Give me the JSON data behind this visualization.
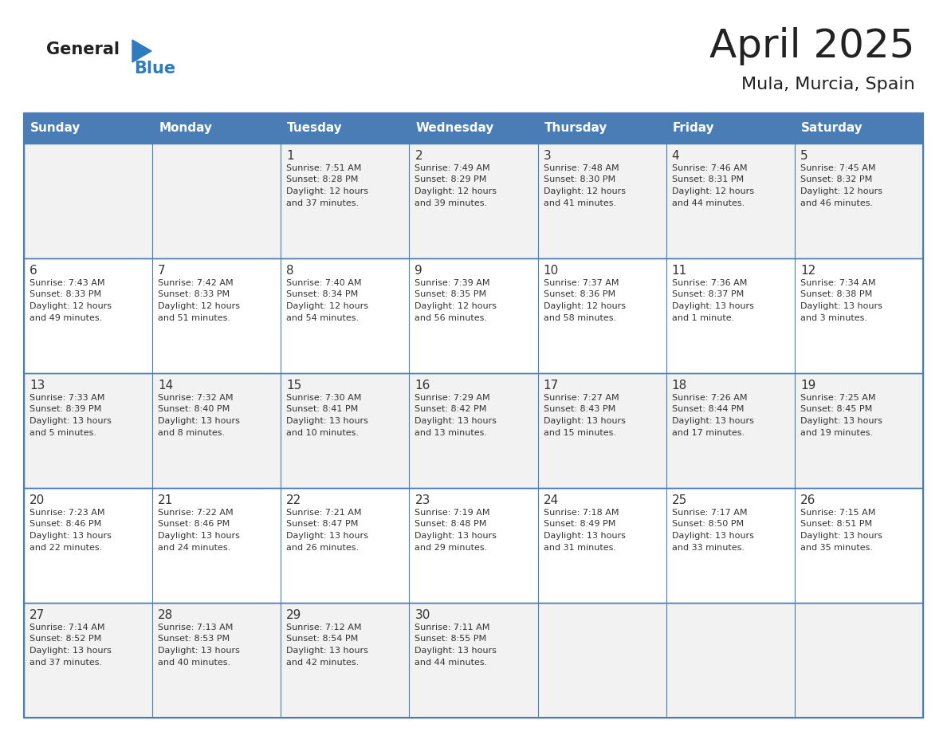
{
  "title": "April 2025",
  "subtitle": "Mula, Murcia, Spain",
  "days_of_week": [
    "Sunday",
    "Monday",
    "Tuesday",
    "Wednesday",
    "Thursday",
    "Friday",
    "Saturday"
  ],
  "header_bg": "#4A7DB5",
  "header_text": "#FFFFFF",
  "row_bg_odd": "#F2F2F2",
  "row_bg_even": "#FFFFFF",
  "border_color": "#4A7DB5",
  "text_color": "#333333",
  "logo_general_color": "#222222",
  "logo_blue_color": "#2E7BBF",
  "logo_triangle_color": "#2E7BBF",
  "title_fontsize": 36,
  "subtitle_fontsize": 16,
  "header_fontsize": 11,
  "day_num_fontsize": 11,
  "cell_text_fontsize": 8,
  "calendar_data": [
    [
      {
        "day": "",
        "lines": []
      },
      {
        "day": "",
        "lines": []
      },
      {
        "day": "1",
        "lines": [
          "Sunrise: 7:51 AM",
          "Sunset: 8:28 PM",
          "Daylight: 12 hours",
          "and 37 minutes."
        ]
      },
      {
        "day": "2",
        "lines": [
          "Sunrise: 7:49 AM",
          "Sunset: 8:29 PM",
          "Daylight: 12 hours",
          "and 39 minutes."
        ]
      },
      {
        "day": "3",
        "lines": [
          "Sunrise: 7:48 AM",
          "Sunset: 8:30 PM",
          "Daylight: 12 hours",
          "and 41 minutes."
        ]
      },
      {
        "day": "4",
        "lines": [
          "Sunrise: 7:46 AM",
          "Sunset: 8:31 PM",
          "Daylight: 12 hours",
          "and 44 minutes."
        ]
      },
      {
        "day": "5",
        "lines": [
          "Sunrise: 7:45 AM",
          "Sunset: 8:32 PM",
          "Daylight: 12 hours",
          "and 46 minutes."
        ]
      }
    ],
    [
      {
        "day": "6",
        "lines": [
          "Sunrise: 7:43 AM",
          "Sunset: 8:33 PM",
          "Daylight: 12 hours",
          "and 49 minutes."
        ]
      },
      {
        "day": "7",
        "lines": [
          "Sunrise: 7:42 AM",
          "Sunset: 8:33 PM",
          "Daylight: 12 hours",
          "and 51 minutes."
        ]
      },
      {
        "day": "8",
        "lines": [
          "Sunrise: 7:40 AM",
          "Sunset: 8:34 PM",
          "Daylight: 12 hours",
          "and 54 minutes."
        ]
      },
      {
        "day": "9",
        "lines": [
          "Sunrise: 7:39 AM",
          "Sunset: 8:35 PM",
          "Daylight: 12 hours",
          "and 56 minutes."
        ]
      },
      {
        "day": "10",
        "lines": [
          "Sunrise: 7:37 AM",
          "Sunset: 8:36 PM",
          "Daylight: 12 hours",
          "and 58 minutes."
        ]
      },
      {
        "day": "11",
        "lines": [
          "Sunrise: 7:36 AM",
          "Sunset: 8:37 PM",
          "Daylight: 13 hours",
          "and 1 minute."
        ]
      },
      {
        "day": "12",
        "lines": [
          "Sunrise: 7:34 AM",
          "Sunset: 8:38 PM",
          "Daylight: 13 hours",
          "and 3 minutes."
        ]
      }
    ],
    [
      {
        "day": "13",
        "lines": [
          "Sunrise: 7:33 AM",
          "Sunset: 8:39 PM",
          "Daylight: 13 hours",
          "and 5 minutes."
        ]
      },
      {
        "day": "14",
        "lines": [
          "Sunrise: 7:32 AM",
          "Sunset: 8:40 PM",
          "Daylight: 13 hours",
          "and 8 minutes."
        ]
      },
      {
        "day": "15",
        "lines": [
          "Sunrise: 7:30 AM",
          "Sunset: 8:41 PM",
          "Daylight: 13 hours",
          "and 10 minutes."
        ]
      },
      {
        "day": "16",
        "lines": [
          "Sunrise: 7:29 AM",
          "Sunset: 8:42 PM",
          "Daylight: 13 hours",
          "and 13 minutes."
        ]
      },
      {
        "day": "17",
        "lines": [
          "Sunrise: 7:27 AM",
          "Sunset: 8:43 PM",
          "Daylight: 13 hours",
          "and 15 minutes."
        ]
      },
      {
        "day": "18",
        "lines": [
          "Sunrise: 7:26 AM",
          "Sunset: 8:44 PM",
          "Daylight: 13 hours",
          "and 17 minutes."
        ]
      },
      {
        "day": "19",
        "lines": [
          "Sunrise: 7:25 AM",
          "Sunset: 8:45 PM",
          "Daylight: 13 hours",
          "and 19 minutes."
        ]
      }
    ],
    [
      {
        "day": "20",
        "lines": [
          "Sunrise: 7:23 AM",
          "Sunset: 8:46 PM",
          "Daylight: 13 hours",
          "and 22 minutes."
        ]
      },
      {
        "day": "21",
        "lines": [
          "Sunrise: 7:22 AM",
          "Sunset: 8:46 PM",
          "Daylight: 13 hours",
          "and 24 minutes."
        ]
      },
      {
        "day": "22",
        "lines": [
          "Sunrise: 7:21 AM",
          "Sunset: 8:47 PM",
          "Daylight: 13 hours",
          "and 26 minutes."
        ]
      },
      {
        "day": "23",
        "lines": [
          "Sunrise: 7:19 AM",
          "Sunset: 8:48 PM",
          "Daylight: 13 hours",
          "and 29 minutes."
        ]
      },
      {
        "day": "24",
        "lines": [
          "Sunrise: 7:18 AM",
          "Sunset: 8:49 PM",
          "Daylight: 13 hours",
          "and 31 minutes."
        ]
      },
      {
        "day": "25",
        "lines": [
          "Sunrise: 7:17 AM",
          "Sunset: 8:50 PM",
          "Daylight: 13 hours",
          "and 33 minutes."
        ]
      },
      {
        "day": "26",
        "lines": [
          "Sunrise: 7:15 AM",
          "Sunset: 8:51 PM",
          "Daylight: 13 hours",
          "and 35 minutes."
        ]
      }
    ],
    [
      {
        "day": "27",
        "lines": [
          "Sunrise: 7:14 AM",
          "Sunset: 8:52 PM",
          "Daylight: 13 hours",
          "and 37 minutes."
        ]
      },
      {
        "day": "28",
        "lines": [
          "Sunrise: 7:13 AM",
          "Sunset: 8:53 PM",
          "Daylight: 13 hours",
          "and 40 minutes."
        ]
      },
      {
        "day": "29",
        "lines": [
          "Sunrise: 7:12 AM",
          "Sunset: 8:54 PM",
          "Daylight: 13 hours",
          "and 42 minutes."
        ]
      },
      {
        "day": "30",
        "lines": [
          "Sunrise: 7:11 AM",
          "Sunset: 8:55 PM",
          "Daylight: 13 hours",
          "and 44 minutes."
        ]
      },
      {
        "day": "",
        "lines": []
      },
      {
        "day": "",
        "lines": []
      },
      {
        "day": "",
        "lines": []
      }
    ]
  ]
}
